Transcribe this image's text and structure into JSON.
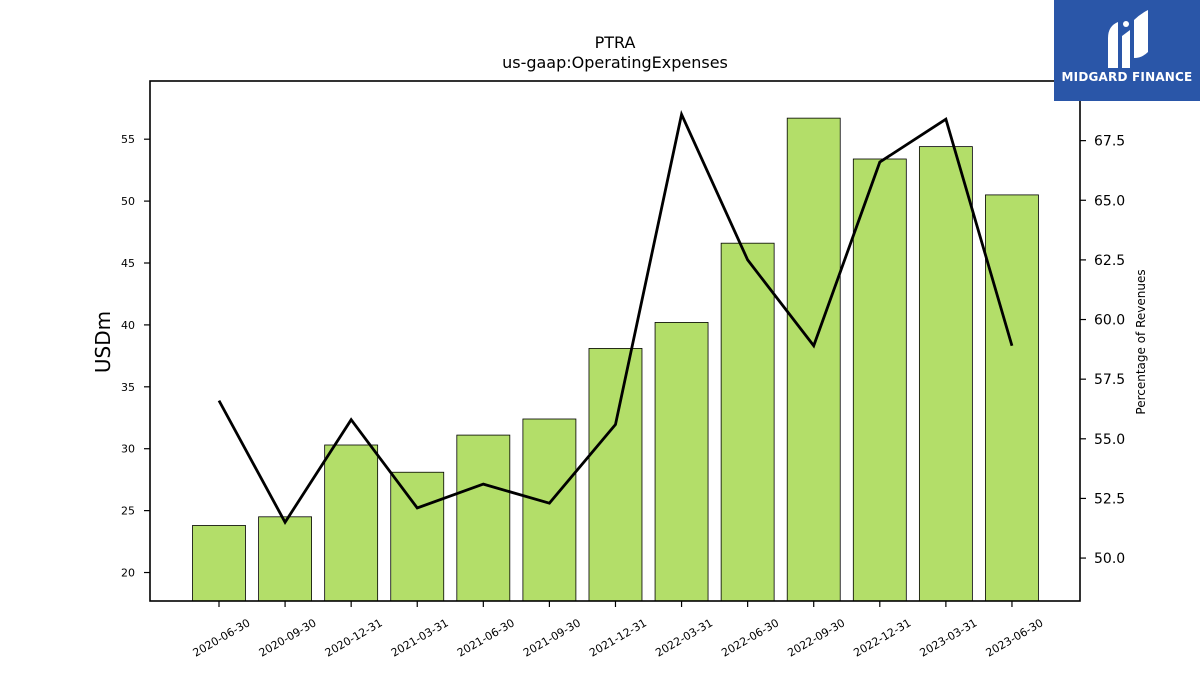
{
  "brand": {
    "name": "MIDGARD FINANCE",
    "background": "#2a56a8"
  },
  "chart_data": {
    "type": "bar",
    "title": "PTRA",
    "subtitle": "us-gaap:OperatingExpenses",
    "ylabel": "USDm",
    "y2label": "Percentage of Revenues",
    "categories": [
      "2020-06-30",
      "2020-09-30",
      "2020-12-31",
      "2021-03-31",
      "2021-06-30",
      "2021-09-30",
      "2021-12-31",
      "2022-03-31",
      "2022-06-30",
      "2022-09-30",
      "2022-12-31",
      "2023-03-31",
      "2023-06-30"
    ],
    "series": [
      {
        "type": "bar",
        "axis": "left",
        "values": [
          23.8,
          24.5,
          30.3,
          28.1,
          31.1,
          32.4,
          38.1,
          40.2,
          46.6,
          56.7,
          53.4,
          54.4,
          50.5
        ],
        "color": "#b3de69",
        "edgecolor": "#000000"
      },
      {
        "type": "line",
        "axis": "right",
        "values": [
          56.6,
          51.5,
          55.8,
          52.1,
          53.1,
          52.3,
          55.6,
          68.6,
          62.5,
          58.9,
          66.6,
          68.4,
          58.9
        ],
        "color": "#000000"
      }
    ],
    "ylim": [
      17.7,
      59.7
    ],
    "yticks": [
      20,
      25,
      30,
      35,
      40,
      45,
      50,
      55
    ],
    "y2lim": [
      48.2,
      70.0
    ],
    "y2ticks": [
      50.0,
      52.5,
      55.0,
      57.5,
      60.0,
      62.5,
      65.0,
      67.5
    ],
    "grid": false
  }
}
